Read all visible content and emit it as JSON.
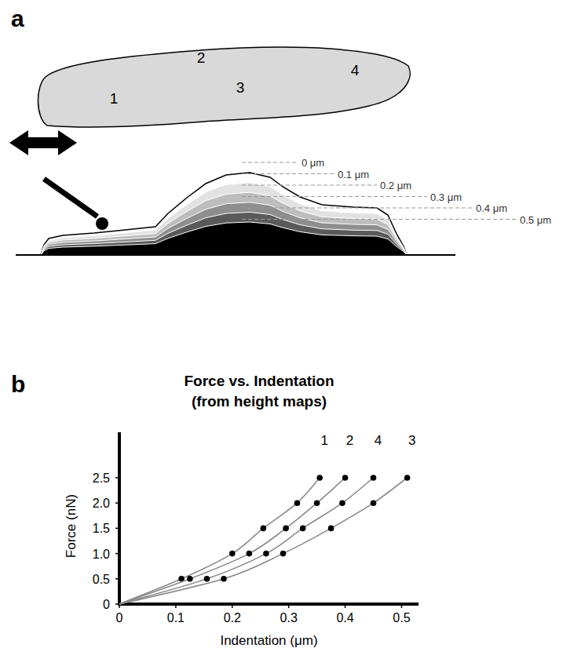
{
  "diagram": {
    "panel_label": "a",
    "cell_labels": [
      "1",
      "2",
      "3",
      "4"
    ],
    "depth_labels": [
      "0 μm",
      "0.1 μm",
      "0.2 μm",
      "0.3 μm",
      "0.4 μm",
      "0.5 μm"
    ]
  },
  "chart_data": {
    "panel_label": "b",
    "type": "scatter",
    "title": "Force vs. Indentation",
    "subtitle": "(from height maps)",
    "x_label": "Indentation (μm)",
    "y_label": "Force (nN)",
    "marker": "circle",
    "line_style": "solid",
    "xlim": [
      0,
      0.53
    ],
    "ylim": [
      0,
      3.4
    ],
    "xticks": [
      0,
      0.1,
      0.2,
      0.3,
      0.4,
      0.5
    ],
    "yticks": [
      0,
      0.5,
      {
        "value": 1,
        "label": "1.0"
      },
      1.5,
      {
        "value": 2,
        "label": "2.0"
      },
      2.5
    ],
    "series": [
      {
        "name": "1",
        "color": "#000000",
        "x": [
          0.11,
          0.2,
          0.255,
          0.315,
          0.355
        ],
        "values": [
          0.5,
          1.0,
          1.5,
          2.0,
          2.5
        ]
      },
      {
        "name": "2",
        "color": "#000000",
        "x": [
          0.125,
          0.23,
          0.295,
          0.35,
          0.4
        ],
        "values": [
          0.5,
          1.0,
          1.5,
          2.0,
          2.5
        ]
      },
      {
        "name": "4",
        "color": "#000000",
        "x": [
          0.155,
          0.26,
          0.325,
          0.395,
          0.45
        ],
        "values": [
          0.5,
          1.0,
          1.5,
          2.0,
          2.5
        ]
      },
      {
        "name": "3",
        "color": "#000000",
        "x": [
          0.185,
          0.29,
          0.375,
          0.45,
          0.51
        ],
        "values": [
          0.5,
          1.0,
          1.5,
          2.0,
          2.5
        ]
      }
    ]
  }
}
